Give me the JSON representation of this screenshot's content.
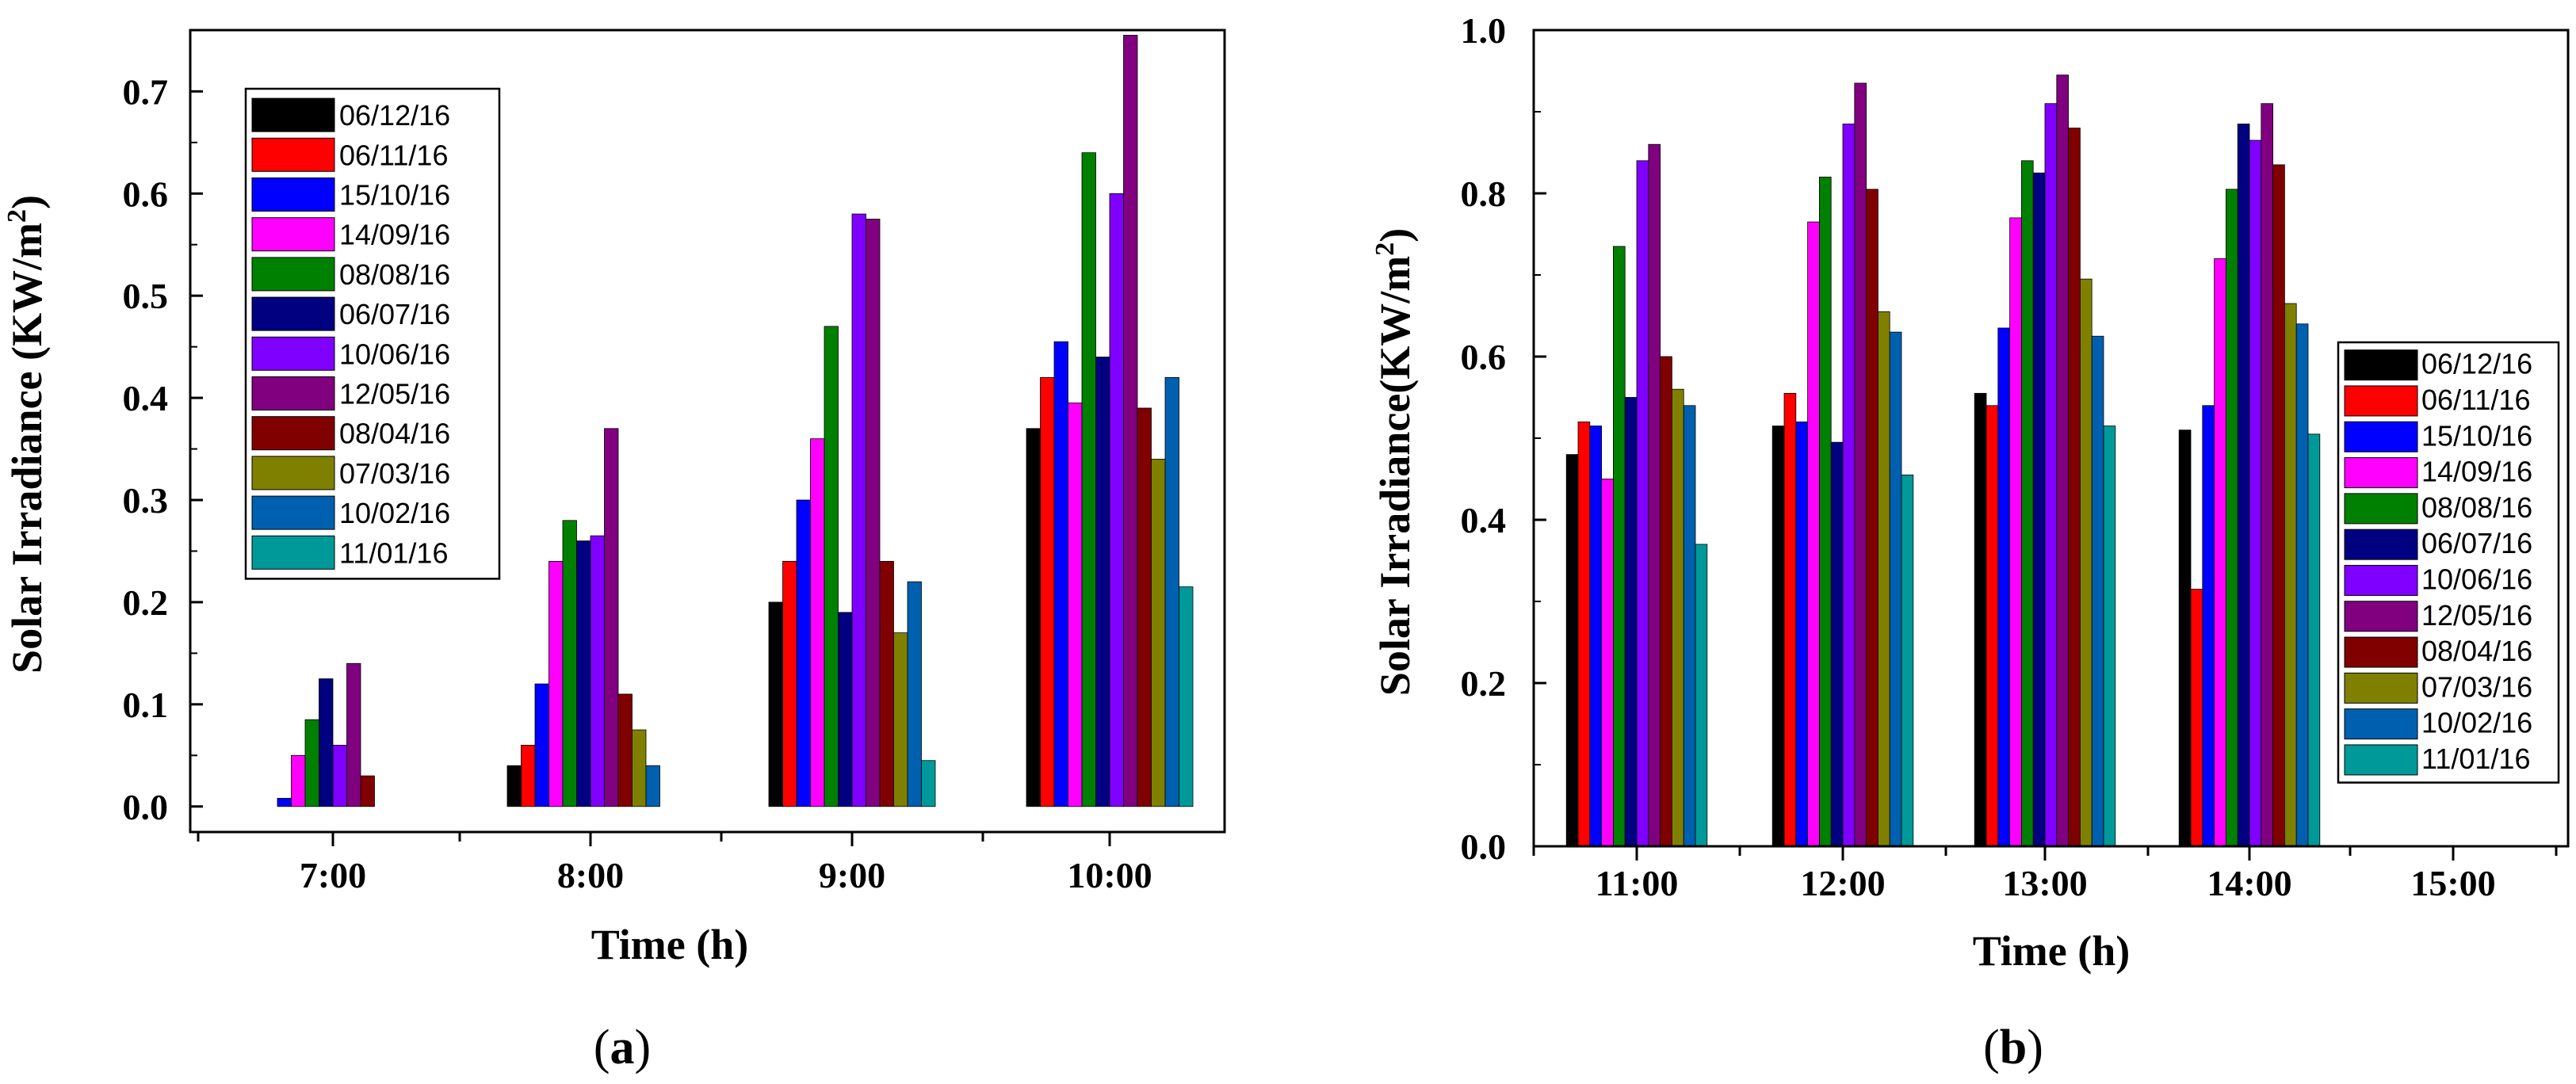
{
  "chart_data": [
    {
      "type": "bar",
      "panel_label": "(a)",
      "xlabel": "Time (h)",
      "ylabel": "Solar Irradiance (KW/m",
      "ylabel_sup": "2",
      "ylabel_close": ")",
      "ylim": [
        -0.025,
        0.76
      ],
      "yticks": [
        "0.0",
        "0.1",
        "0.2",
        "0.3",
        "0.4",
        "0.5",
        "0.6",
        "0.7"
      ],
      "categories": [
        "7:00",
        "8:00",
        "9:00",
        "10:00"
      ],
      "legend_position": "top-left",
      "series": [
        {
          "name": "06/12/16",
          "color": "#000000",
          "values": [
            0.0,
            0.04,
            0.2,
            0.37
          ]
        },
        {
          "name": "06/11/16",
          "color": "#ff0000",
          "values": [
            0.0,
            0.06,
            0.24,
            0.42
          ]
        },
        {
          "name": "15/10/16",
          "color": "#0000ff",
          "values": [
            0.008,
            0.12,
            0.3,
            0.455
          ]
        },
        {
          "name": "14/09/16",
          "color": "#ff00ff",
          "values": [
            0.05,
            0.24,
            0.36,
            0.395
          ]
        },
        {
          "name": "08/08/16",
          "color": "#008000",
          "values": [
            0.085,
            0.28,
            0.47,
            0.64
          ]
        },
        {
          "name": "06/07/16",
          "color": "#000080",
          "values": [
            0.125,
            0.26,
            0.19,
            0.44
          ]
        },
        {
          "name": "10/06/16",
          "color": "#8000ff",
          "values": [
            0.06,
            0.265,
            0.58,
            0.6
          ]
        },
        {
          "name": "12/05/16",
          "color": "#800080",
          "values": [
            0.14,
            0.37,
            0.575,
            0.755
          ]
        },
        {
          "name": "08/04/16",
          "color": "#800000",
          "values": [
            0.03,
            0.11,
            0.24,
            0.39
          ]
        },
        {
          "name": "07/03/16",
          "color": "#808000",
          "values": [
            0.0,
            0.075,
            0.17,
            0.34
          ]
        },
        {
          "name": "10/02/16",
          "color": "#0060b0",
          "values": [
            0.0,
            0.04,
            0.22,
            0.42
          ]
        },
        {
          "name": "11/01/16",
          "color": "#009999",
          "values": [
            0.0,
            0.0,
            0.045,
            0.215
          ]
        }
      ]
    },
    {
      "type": "bar",
      "panel_label": "(b)",
      "xlabel": "Time (h)",
      "ylabel": "Solar Irradiance(KW/m",
      "ylabel_sup": "2",
      "ylabel_close": ")",
      "ylim": [
        0.0,
        1.0
      ],
      "yticks": [
        "0.0",
        "0.2",
        "0.4",
        "0.6",
        "0.8",
        "1.0"
      ],
      "categories": [
        "11:00",
        "12:00",
        "13:00",
        "14:00",
        "15:00"
      ],
      "legend_position": "bottom-right",
      "series": [
        {
          "name": "06/12/16",
          "color": "#000000",
          "values": [
            0.48,
            0.515,
            0.555,
            0.51,
            0
          ]
        },
        {
          "name": "06/11/16",
          "color": "#ff0000",
          "values": [
            0.52,
            0.555,
            0.54,
            0.315,
            0
          ]
        },
        {
          "name": "15/10/16",
          "color": "#0000ff",
          "values": [
            0.515,
            0.52,
            0.635,
            0.54,
            0
          ]
        },
        {
          "name": "14/09/16",
          "color": "#ff00ff",
          "values": [
            0.45,
            0.765,
            0.77,
            0.72,
            0
          ]
        },
        {
          "name": "08/08/16",
          "color": "#008000",
          "values": [
            0.735,
            0.82,
            0.84,
            0.805,
            0
          ]
        },
        {
          "name": "06/07/16",
          "color": "#000080",
          "values": [
            0.55,
            0.495,
            0.825,
            0.885,
            0
          ]
        },
        {
          "name": "10/06/16",
          "color": "#8000ff",
          "values": [
            0.84,
            0.885,
            0.91,
            0.865,
            0
          ]
        },
        {
          "name": "12/05/16",
          "color": "#800080",
          "values": [
            0.86,
            0.935,
            0.945,
            0.91,
            0
          ]
        },
        {
          "name": "08/04/16",
          "color": "#800000",
          "values": [
            0.6,
            0.805,
            0.88,
            0.835,
            0
          ]
        },
        {
          "name": "07/03/16",
          "color": "#808000",
          "values": [
            0.56,
            0.655,
            0.695,
            0.665,
            0
          ]
        },
        {
          "name": "10/02/16",
          "color": "#0060b0",
          "values": [
            0.54,
            0.63,
            0.625,
            0.64,
            0
          ]
        },
        {
          "name": "11/01/16",
          "color": "#009999",
          "values": [
            0.37,
            0.455,
            0.515,
            0.505,
            0
          ]
        }
      ]
    }
  ]
}
